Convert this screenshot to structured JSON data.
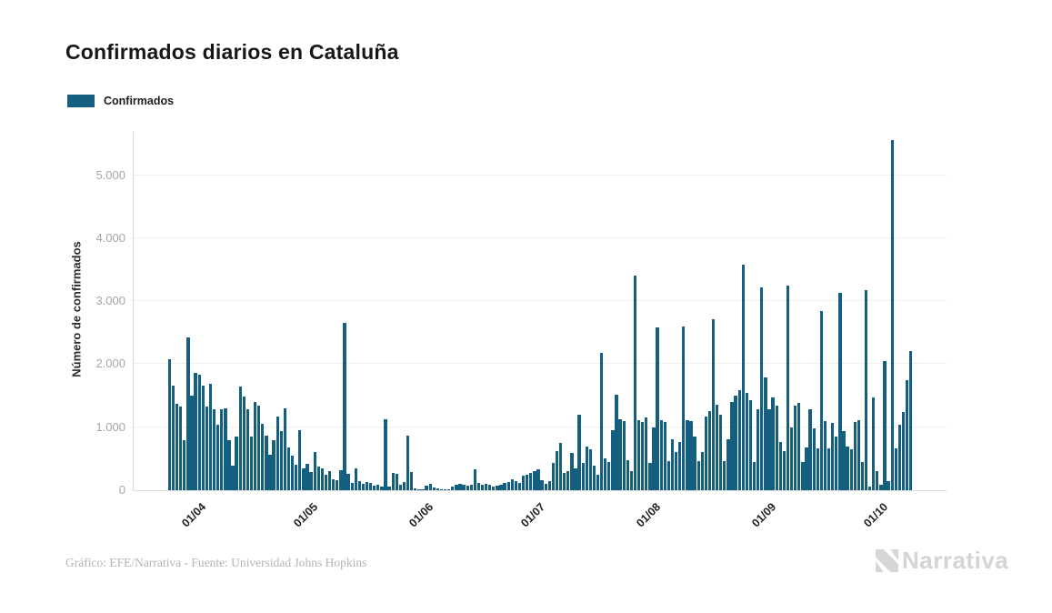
{
  "title": "Confirmados diarios en Cataluña",
  "legend": {
    "label": "Confirmados",
    "color": "#145e80"
  },
  "y_axis": {
    "title": "Número de confirmados"
  },
  "footer": {
    "credit": "Gráfico: EFE/Narrativa - Fuente: Universidad Johns Hopkins"
  },
  "logo": {
    "text": "Narrativa",
    "icon": "narrativa-n-mark",
    "color": "#d6d6d6"
  },
  "chart_data": {
    "type": "bar",
    "title": "Confirmados diarios en Cataluña",
    "xlabel": "",
    "ylabel": "Número de confirmados",
    "series_name": "Confirmados",
    "bar_color": "#145e80",
    "grid": "horizontal",
    "legend_position": "top-left",
    "ylim": [
      0,
      5800
    ],
    "y_ticks": [
      0,
      1000,
      2000,
      3000,
      4000,
      5000
    ],
    "y_tick_labels": [
      "0",
      "1.000",
      "2.000",
      "3.000",
      "4.000",
      "5.000"
    ],
    "x_start_date": "26/03/2020",
    "x_end_date": "11/10/2020",
    "x_tick_labels": [
      "01/04",
      "01/05",
      "01/06",
      "01/07",
      "01/08",
      "01/09",
      "01/10"
    ],
    "x_tick_day_offsets": [
      6,
      36,
      67,
      97,
      128,
      159,
      189
    ],
    "values": [
      2080,
      1665,
      1375,
      1335,
      800,
      2430,
      1495,
      1855,
      1830,
      1665,
      1325,
      1685,
      1280,
      1035,
      1280,
      1300,
      800,
      390,
      845,
      1640,
      1490,
      1280,
      845,
      1395,
      1345,
      1050,
      860,
      560,
      800,
      1165,
      940,
      1295,
      680,
      555,
      400,
      955,
      340,
      420,
      295,
      610,
      375,
      345,
      250,
      310,
      180,
      155,
      315,
      2650,
      265,
      120,
      350,
      150,
      95,
      130,
      110,
      75,
      90,
      60,
      1130,
      65,
      270,
      255,
      85,
      130,
      870,
      295,
      30,
      20,
      15,
      70,
      95,
      45,
      25,
      20,
      15,
      20,
      55,
      80,
      95,
      90,
      75,
      80,
      330,
      120,
      90,
      100,
      85,
      60,
      75,
      90,
      120,
      135,
      180,
      150,
      120,
      230,
      245,
      270,
      310,
      330,
      165,
      95,
      140,
      440,
      615,
      750,
      270,
      310,
      590,
      340,
      1205,
      430,
      700,
      650,
      385,
      250,
      2180,
      510,
      450,
      950,
      1510,
      1130,
      1100,
      480,
      305,
      3400,
      1115,
      1080,
      1155,
      430,
      995,
      2580,
      1110,
      1085,
      465,
      815,
      600,
      760,
      2600,
      1110,
      1100,
      850,
      465,
      600,
      1175,
      1250,
      2720,
      1360,
      1205,
      455,
      815,
      1395,
      1495,
      1590,
      3580,
      1540,
      1425,
      450,
      1285,
      3220,
      1790,
      1285,
      1465,
      1340,
      770,
      615,
      3250,
      1000,
      1340,
      1390,
      450,
      680,
      1280,
      975,
      660,
      2840,
      1090,
      660,
      1075,
      850,
      3130,
      935,
      690,
      655,
      1080,
      1105,
      450,
      3175,
      60,
      1465,
      310,
      90,
      2045,
      150,
      5560,
      660,
      1040,
      1240,
      1745,
      2215
    ]
  }
}
